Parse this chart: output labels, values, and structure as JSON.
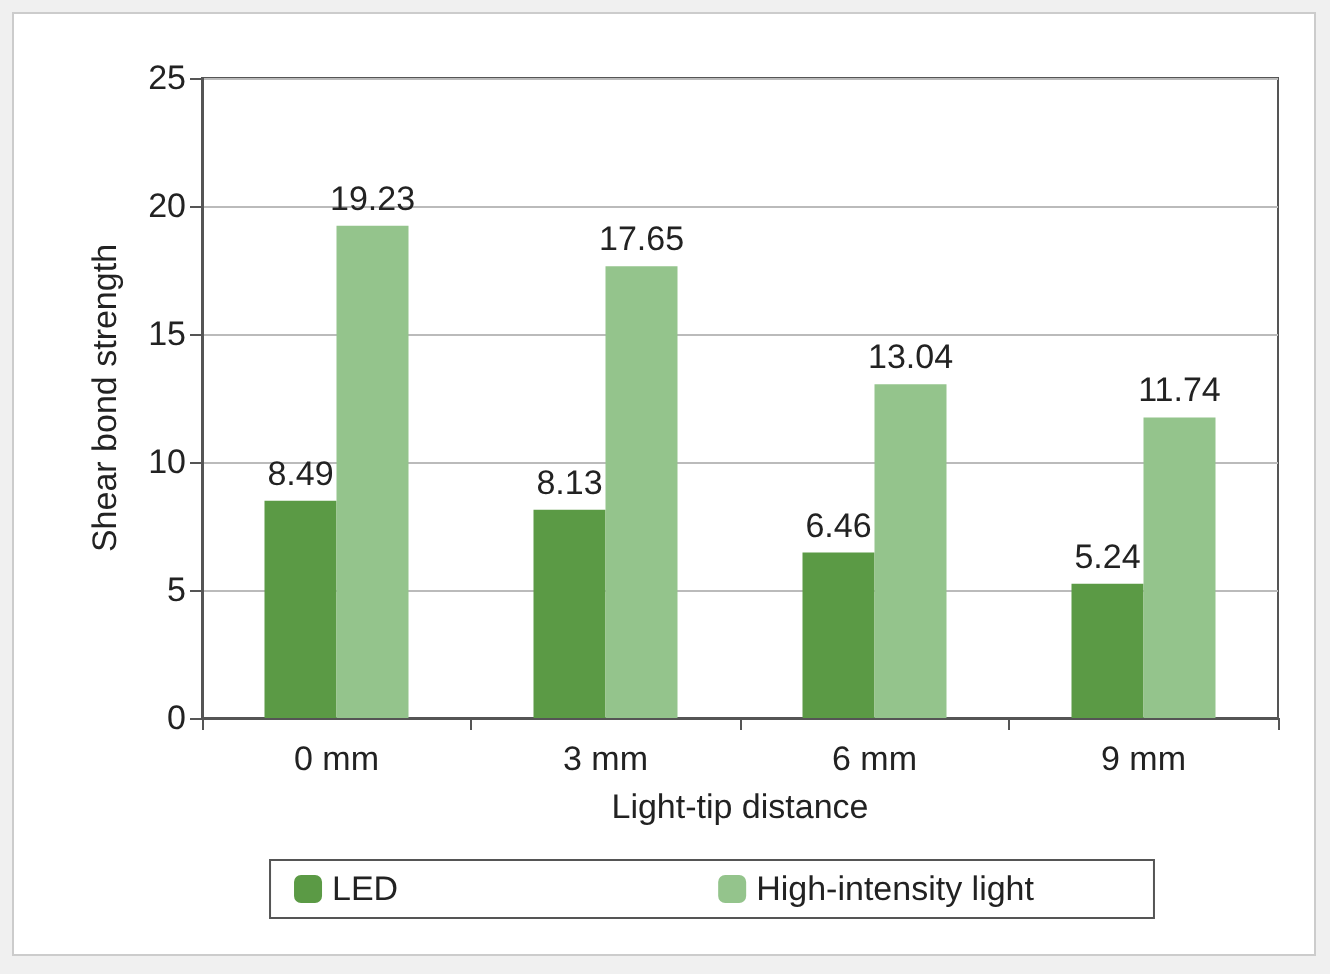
{
  "chart_data": {
    "type": "bar",
    "xlabel": "Light-tip distance",
    "ylabel": "Shear bond strength",
    "categories": [
      "0 mm",
      "3 mm",
      "6 mm",
      "9 mm"
    ],
    "series": [
      {
        "name": "LED",
        "color": "#5b9a45",
        "values": [
          8.49,
          8.13,
          6.46,
          5.24
        ]
      },
      {
        "name": "High-intensity light",
        "color": "#94c48c",
        "values": [
          19.23,
          17.65,
          13.04,
          11.74
        ]
      }
    ],
    "ylim": [
      0,
      25
    ],
    "yticks": [
      0,
      5,
      10,
      15,
      20,
      25
    ],
    "grid": "y",
    "legend": "bottom",
    "data_labels": true
  }
}
